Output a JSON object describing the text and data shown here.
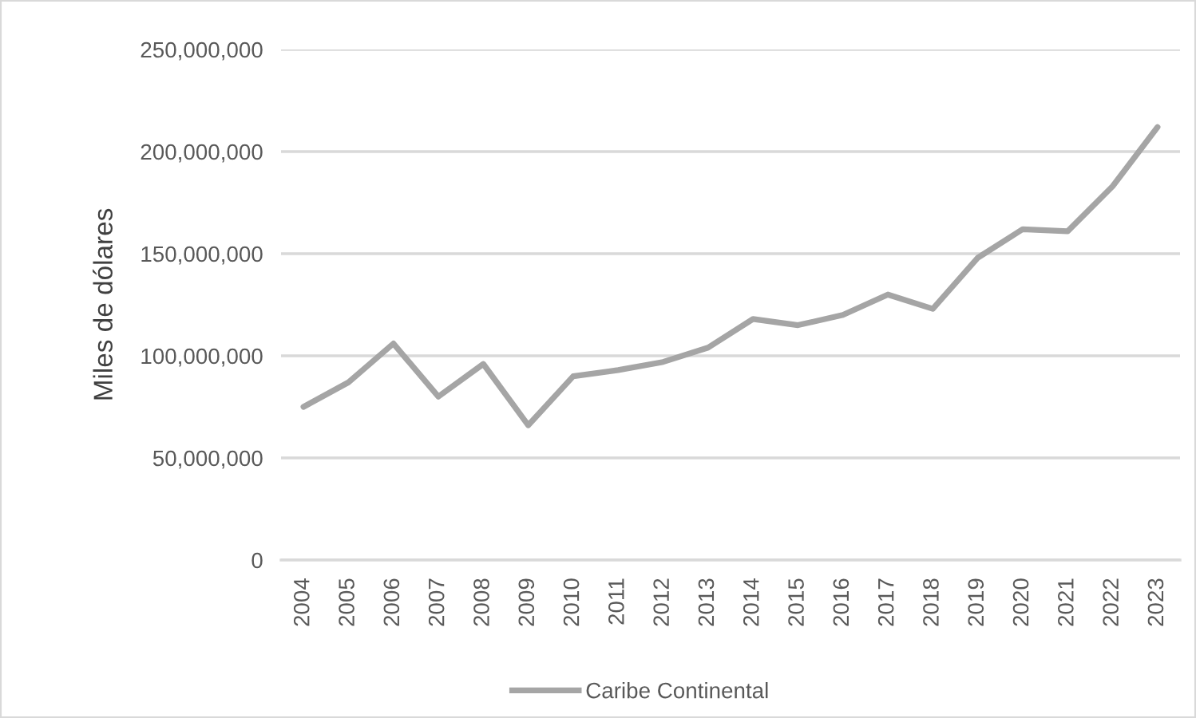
{
  "chart_data": {
    "type": "line",
    "ylabel": "Miles de dólares",
    "categories": [
      "2004",
      "2005",
      "2006",
      "2007",
      "2008",
      "2009",
      "2010",
      "2011",
      "2012",
      "2013",
      "2014",
      "2015",
      "2016",
      "2017",
      "2018",
      "2019",
      "2020",
      "2021",
      "2022",
      "2023"
    ],
    "series": [
      {
        "name": "Caribe Continental",
        "color": "#a5a5a5",
        "values": [
          75000000,
          87000000,
          106000000,
          80000000,
          96000000,
          66000000,
          90000000,
          93000000,
          97000000,
          104000000,
          118000000,
          115000000,
          120000000,
          130000000,
          123000000,
          148000000,
          162000000,
          161000000,
          183000000,
          212000000
        ]
      }
    ],
    "ylim": [
      0,
      250000000
    ],
    "yticks": [
      0,
      {
        "value": 50000000,
        "label": "50,000,000"
      },
      {
        "value": 100000000,
        "label": "100,000,000"
      },
      {
        "value": 150000000,
        "label": "150,000,000"
      },
      {
        "value": 200000000,
        "label": "200,000,000"
      },
      {
        "value": 250000000,
        "label": "250,000,000"
      }
    ],
    "grid": "y",
    "legend": "bottom"
  }
}
